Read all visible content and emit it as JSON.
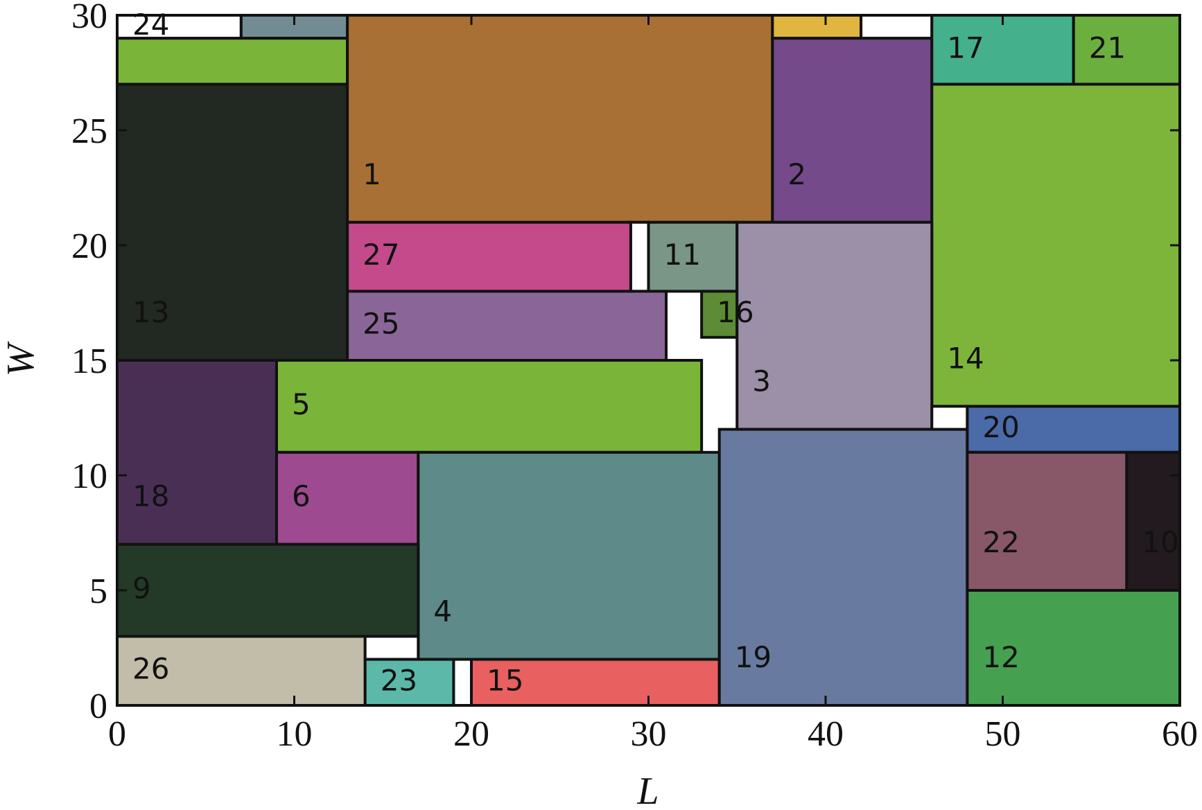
{
  "chart_data": {
    "type": "rect-packing",
    "xlabel": "L",
    "ylabel": "W",
    "xlim": [
      0,
      60
    ],
    "ylim": [
      0,
      30
    ],
    "xticks": [
      0,
      10,
      20,
      30,
      40,
      50,
      60
    ],
    "yticks": [
      0,
      5,
      10,
      15,
      20,
      25,
      30
    ],
    "rects": [
      {
        "label": "24",
        "color": "#ffffff",
        "x": [
          0,
          7
        ],
        "y": [
          29,
          30
        ]
      },
      {
        "color": "#738c94",
        "x": [
          7,
          13
        ],
        "y": [
          29,
          30
        ]
      },
      {
        "color": "#7ab53a",
        "x": [
          0,
          13
        ],
        "y": [
          27,
          29
        ]
      },
      {
        "label": "13",
        "color": "#222822",
        "x": [
          0,
          13
        ],
        "y": [
          15,
          27
        ]
      },
      {
        "label": "1",
        "color": "#a87035",
        "x": [
          13,
          37
        ],
        "y": [
          21,
          30
        ]
      },
      {
        "color": "#e0b640",
        "x": [
          37,
          42
        ],
        "y": [
          29,
          30
        ]
      },
      {
        "color": "#ffffff",
        "x": [
          42,
          46
        ],
        "y": [
          29,
          30
        ]
      },
      {
        "label": "2",
        "color": "#744a8a",
        "x": [
          37,
          46
        ],
        "y": [
          21,
          29
        ]
      },
      {
        "label": "17",
        "color": "#45b08c",
        "x": [
          46,
          54
        ],
        "y": [
          27,
          30
        ]
      },
      {
        "label": "21",
        "color": "#6bb03e",
        "x": [
          54,
          60
        ],
        "y": [
          27,
          30
        ]
      },
      {
        "label": "14",
        "color": "#7db53a",
        "x": [
          46,
          60
        ],
        "y": [
          13,
          27
        ]
      },
      {
        "label": "27",
        "color": "#c44a8c",
        "x": [
          13,
          29
        ],
        "y": [
          18,
          21
        ]
      },
      {
        "color": "#ffffff",
        "x": [
          29,
          30
        ],
        "y": [
          18,
          21
        ]
      },
      {
        "label": "11",
        "color": "#7a9686",
        "x": [
          30,
          35
        ],
        "y": [
          18,
          21
        ]
      },
      {
        "label": "16",
        "color": "#5e8c36",
        "x": [
          33,
          35
        ],
        "y": [
          16,
          18
        ]
      },
      {
        "label": "25",
        "color": "#8a6698",
        "x": [
          13,
          31
        ],
        "y": [
          15,
          18
        ]
      },
      {
        "label": "3",
        "color": "#9c8fa8",
        "x": [
          35,
          46
        ],
        "y": [
          12,
          21
        ]
      },
      {
        "label": "5",
        "color": "#7ab53a",
        "x": [
          9,
          33
        ],
        "y": [
          11,
          15
        ]
      },
      {
        "label": "18",
        "color": "#4a2f55",
        "x": [
          0,
          9
        ],
        "y": [
          7,
          15
        ]
      },
      {
        "label": "6",
        "color": "#9e4a90",
        "x": [
          9,
          17
        ],
        "y": [
          7,
          11
        ]
      },
      {
        "label": "4",
        "color": "#5e8a8a",
        "x": [
          17,
          34
        ],
        "y": [
          2,
          11
        ]
      },
      {
        "label": "9",
        "color": "#233a28",
        "x": [
          0,
          17
        ],
        "y": [
          3,
          7
        ]
      },
      {
        "label": "26",
        "color": "#c2bda8",
        "x": [
          0,
          14
        ],
        "y": [
          0,
          3
        ]
      },
      {
        "color": "#ffffff",
        "x": [
          14,
          17
        ],
        "y": [
          2,
          3
        ]
      },
      {
        "label": "23",
        "color": "#5cb8a8",
        "x": [
          14,
          19
        ],
        "y": [
          0,
          2
        ]
      },
      {
        "color": "#ffffff",
        "x": [
          19,
          20
        ],
        "y": [
          0,
          2
        ]
      },
      {
        "label": "15",
        "color": "#e86060",
        "x": [
          20,
          34
        ],
        "y": [
          0,
          2
        ]
      },
      {
        "label": "19",
        "color": "#687aa0",
        "x": [
          34,
          48
        ],
        "y": [
          0,
          12
        ]
      },
      {
        "color": "#ffffff",
        "x": [
          46,
          48
        ],
        "y": [
          12,
          13
        ]
      },
      {
        "label": "20",
        "color": "#4a6aa8",
        "x": [
          48,
          60
        ],
        "y": [
          11,
          13
        ]
      },
      {
        "label": "22",
        "color": "#885868",
        "x": [
          48,
          57
        ],
        "y": [
          5,
          11
        ]
      },
      {
        "label": "10",
        "color": "#221a1e",
        "x": [
          57,
          60
        ],
        "y": [
          5,
          11
        ]
      },
      {
        "label": "12",
        "color": "#45a050",
        "x": [
          48,
          60
        ],
        "y": [
          0,
          5
        ]
      }
    ]
  }
}
